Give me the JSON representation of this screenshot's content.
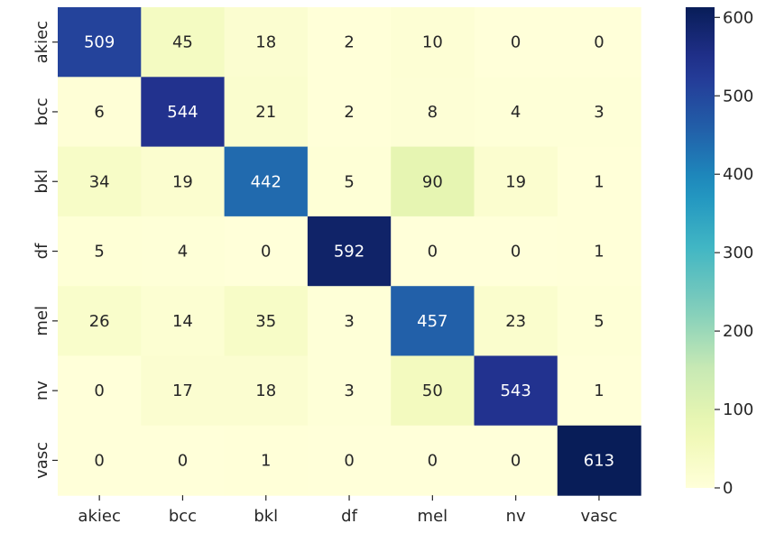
{
  "chart_data": {
    "type": "heatmap",
    "rows": [
      "akiec",
      "bcc",
      "bkl",
      "df",
      "mel",
      "nv",
      "vasc"
    ],
    "columns": [
      "akiec",
      "bcc",
      "bkl",
      "df",
      "mel",
      "nv",
      "vasc"
    ],
    "values": [
      [
        509,
        45,
        18,
        2,
        10,
        0,
        0
      ],
      [
        6,
        544,
        21,
        2,
        8,
        4,
        3
      ],
      [
        34,
        19,
        442,
        5,
        90,
        19,
        1
      ],
      [
        5,
        4,
        0,
        592,
        0,
        0,
        1
      ],
      [
        26,
        14,
        35,
        3,
        457,
        23,
        5
      ],
      [
        0,
        17,
        18,
        3,
        50,
        543,
        1
      ],
      [
        0,
        0,
        1,
        0,
        0,
        0,
        613
      ]
    ],
    "colormap": "YlGnBu",
    "vmin": 0,
    "vmax": 613,
    "colorbar_ticks": [
      0,
      100,
      200,
      300,
      400,
      500,
      600
    ],
    "title": "",
    "xlabel": "",
    "ylabel": ""
  }
}
